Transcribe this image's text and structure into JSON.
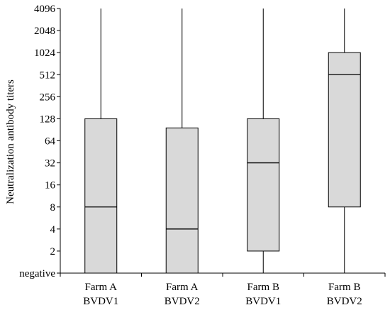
{
  "chart_data": {
    "type": "box",
    "title": "",
    "xlabel": "",
    "ylabel": "Neutralization antibody titers",
    "y_scale": "log2 (with 'negative' baseline category)",
    "y_ticks": [
      "negative",
      "2",
      "4",
      "8",
      "16",
      "32",
      "64",
      "128",
      "256",
      "512",
      "1024",
      "2048",
      "4096"
    ],
    "grid": false,
    "categories": [
      {
        "line1": "Farm A",
        "line2": "BVDV1"
      },
      {
        "line1": "Farm A",
        "line2": "BVDV2"
      },
      {
        "line1": "Farm B",
        "line2": "BVDV1"
      },
      {
        "line1": "Farm B",
        "line2": "BVDV2"
      }
    ],
    "boxes": [
      {
        "min": "negative",
        "q1": "negative",
        "median": 8,
        "q3": 128,
        "max": 4096
      },
      {
        "min": "negative",
        "q1": "negative",
        "median": 4,
        "q3": 96,
        "max": 4096
      },
      {
        "min": "negative",
        "q1": 2,
        "median": 32,
        "q3": 128,
        "max": 4096
      },
      {
        "min": "negative",
        "q1": 8,
        "median": 512,
        "q3": 1024,
        "max": 4096
      }
    ],
    "box_fill": "#d9d9d9",
    "line_color": "#000000"
  }
}
